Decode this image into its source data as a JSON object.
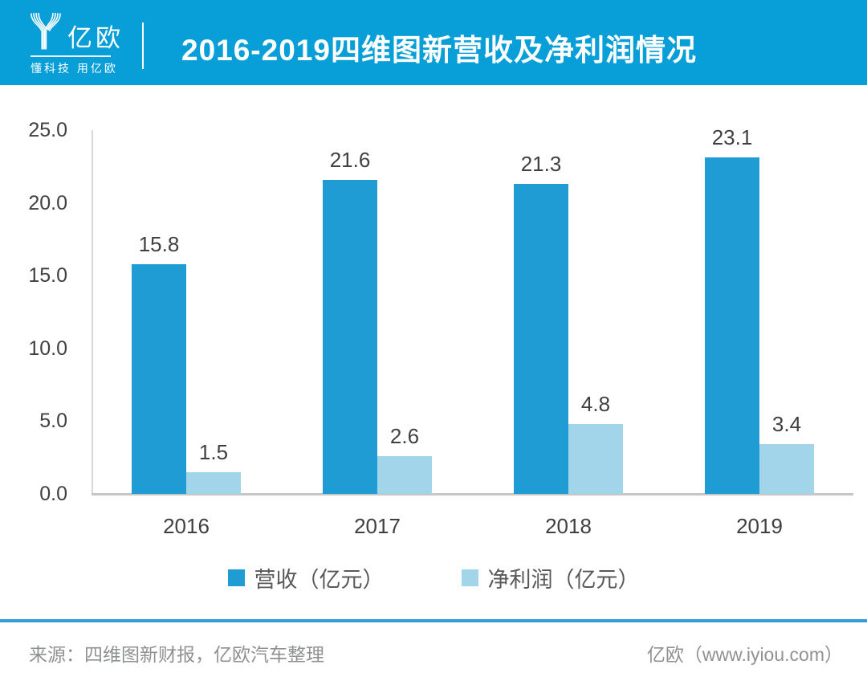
{
  "header": {
    "logo_name": "亿欧",
    "logo_tagline": "懂科技 用亿欧",
    "title": "2016-2019四维图新营收及净利润情况"
  },
  "chart_data": {
    "type": "bar",
    "title": "2016-2019四维图新营收及净利润情况",
    "categories": [
      "2016",
      "2017",
      "2018",
      "2019"
    ],
    "series": [
      {
        "name": "营收（亿元）",
        "color": "#1f9cd3",
        "values": [
          15.8,
          21.6,
          21.3,
          23.1
        ]
      },
      {
        "name": "净利润（亿元）",
        "color": "#a2d5ea",
        "values": [
          1.5,
          2.6,
          4.8,
          3.4
        ]
      }
    ],
    "y_ticks": [
      25.0,
      20.0,
      15.0,
      10.0,
      5.0,
      0.0
    ],
    "y_tick_labels": [
      "25.0",
      "20.0",
      "15.0",
      "10.0",
      "5.0",
      "0.0"
    ],
    "ylim": [
      0,
      25
    ],
    "grid": false,
    "legend_position": "bottom",
    "value_labels_shown": true
  },
  "footer": {
    "source": "来源：四维图新财报，亿欧汽车整理",
    "brand": "亿欧（www.iyiou.com）"
  },
  "colors": {
    "header_bg": "#089fd8",
    "revenue_bar": "#1f9cd3",
    "profit_bar": "#a2d5ea",
    "axis_line": "#c6c6c6",
    "text_dark": "#404040",
    "footer_text": "#8f9193",
    "footer_rule": "#2f9fd4"
  }
}
